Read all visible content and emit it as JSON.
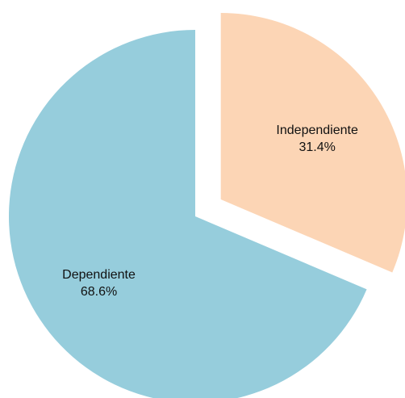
{
  "chart_data": {
    "type": "pie",
    "title": "",
    "start_angle_deg": 0,
    "direction": "clockwise",
    "slices": [
      {
        "label": "Independiente",
        "value": 31.4,
        "value_label": "31.4%",
        "color": "#fcd5b5",
        "exploded": true
      },
      {
        "label": "Dependiente",
        "value": 68.6,
        "value_label": "68.6%",
        "color": "#96cddc",
        "exploded": false
      }
    ]
  }
}
